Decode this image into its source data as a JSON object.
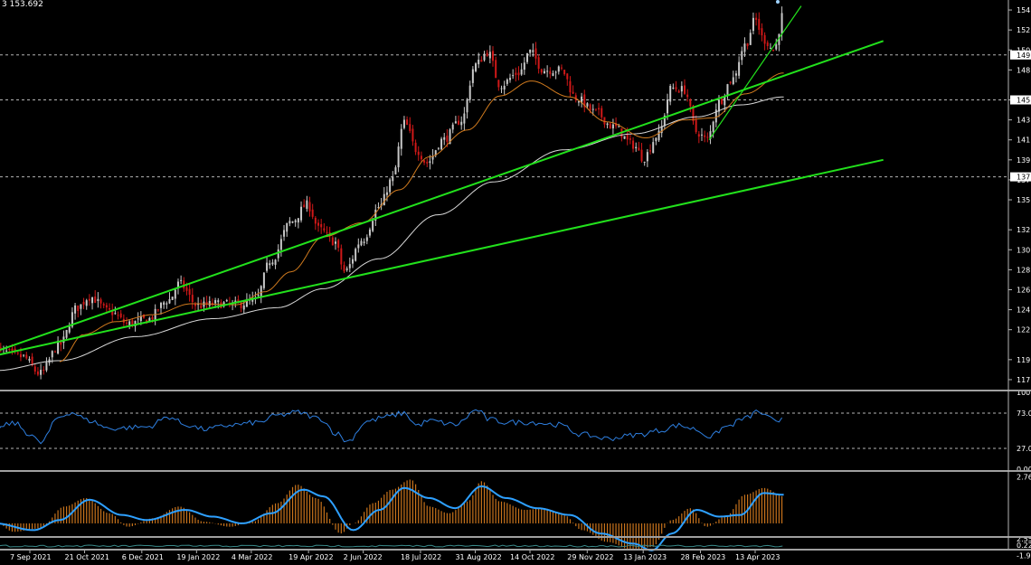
{
  "header": {
    "label": "3 153.692"
  },
  "chart_data": [
    {
      "type": "candlestick",
      "panel": "price",
      "ylim": [
        116,
        155
      ],
      "y_ticks": [
        "117.",
        "119.",
        "122.",
        "124.",
        "126.",
        "128.",
        "130.",
        "132.",
        "135.",
        "137.",
        "139.",
        "141.",
        "143.",
        "145.",
        "148.",
        "150.",
        "152.",
        "154."
      ],
      "y_tick_values": [
        117,
        119,
        122,
        124,
        126,
        128,
        130,
        132,
        135,
        137,
        139,
        141,
        143,
        145,
        148,
        150,
        152,
        154
      ],
      "hlines": [
        {
          "value": 149.5,
          "label": "149."
        },
        {
          "value": 145.0,
          "label": "145."
        },
        {
          "value": 137.3,
          "label": "137."
        }
      ],
      "price_anchors": [
        [
          "2021-08-10",
          120.0
        ],
        [
          "2021-09-01",
          119.3
        ],
        [
          "2021-09-15",
          117.6
        ],
        [
          "2021-10-01",
          120.5
        ],
        [
          "2021-10-15",
          124.2
        ],
        [
          "2021-10-25",
          125.3
        ],
        [
          "2021-11-10",
          123.8
        ],
        [
          "2021-11-25",
          122.6
        ],
        [
          "2021-12-10",
          123.0
        ],
        [
          "2021-12-28",
          125.0
        ],
        [
          "2022-01-05",
          126.6
        ],
        [
          "2022-01-20",
          124.4
        ],
        [
          "2022-02-05",
          124.6
        ],
        [
          "2022-02-20",
          124.5
        ],
        [
          "2022-03-07",
          124.9
        ],
        [
          "2022-03-20",
          129.0
        ],
        [
          "2022-04-05",
          132.8
        ],
        [
          "2022-04-18",
          134.5
        ],
        [
          "2022-04-28",
          132.0
        ],
        [
          "2022-05-10",
          130.8
        ],
        [
          "2022-05-18",
          127.8
        ],
        [
          "2022-06-01",
          131.0
        ],
        [
          "2022-06-15",
          134.3
        ],
        [
          "2022-06-25",
          137.0
        ],
        [
          "2022-07-05",
          142.7
        ],
        [
          "2022-07-15",
          140.0
        ],
        [
          "2022-07-23",
          138.7
        ],
        [
          "2022-08-05",
          141.0
        ],
        [
          "2022-08-20",
          143.0
        ],
        [
          "2022-08-31",
          148.5
        ],
        [
          "2022-09-10",
          149.8
        ],
        [
          "2022-09-20",
          146.5
        ],
        [
          "2022-10-05",
          147.7
        ],
        [
          "2022-10-14",
          149.8
        ],
        [
          "2022-10-25",
          148.0
        ],
        [
          "2022-11-08",
          148.0
        ],
        [
          "2022-11-20",
          145.2
        ],
        [
          "2022-12-05",
          143.8
        ],
        [
          "2022-12-20",
          142.3
        ],
        [
          "2023-01-05",
          140.5
        ],
        [
          "2023-01-13",
          139.2
        ],
        [
          "2023-01-25",
          141.5
        ],
        [
          "2023-02-05",
          146.2
        ],
        [
          "2023-02-15",
          146.0
        ],
        [
          "2023-02-25",
          141.8
        ],
        [
          "2023-03-05",
          141.0
        ],
        [
          "2023-03-15",
          144.8
        ],
        [
          "2023-03-25",
          147.0
        ],
        [
          "2023-04-05",
          150.5
        ],
        [
          "2023-04-13",
          153.0
        ],
        [
          "2023-04-20",
          151.0
        ],
        [
          "2023-04-28",
          150.0
        ],
        [
          "2023-05-06",
          153.7
        ]
      ],
      "ma_fast_anchors": [
        [
          "2021-10-01",
          118.8
        ],
        [
          "2021-10-20",
          121.5
        ],
        [
          "2021-11-15",
          122.8
        ],
        [
          "2021-12-15",
          123.5
        ],
        [
          "2022-01-15",
          124.6
        ],
        [
          "2022-02-20",
          124.5
        ],
        [
          "2022-03-15",
          125.8
        ],
        [
          "2022-04-05",
          127.8
        ],
        [
          "2022-05-01",
          131.3
        ],
        [
          "2022-06-01",
          132.7
        ],
        [
          "2022-07-01",
          136.0
        ],
        [
          "2022-07-25",
          139.3
        ],
        [
          "2022-08-25",
          142.0
        ],
        [
          "2022-09-20",
          145.4
        ],
        [
          "2022-10-15",
          146.9
        ],
        [
          "2022-11-15",
          145.3
        ],
        [
          "2022-12-15",
          142.8
        ],
        [
          "2023-01-15",
          141.2
        ],
        [
          "2023-02-15",
          143.0
        ],
        [
          "2023-03-10",
          143.2
        ],
        [
          "2023-04-05",
          145.6
        ],
        [
          "2023-05-06",
          147.7
        ]
      ],
      "ma_slow_anchors": [
        [
          "2021-08-10",
          117.9
        ],
        [
          "2021-10-01",
          118.9
        ],
        [
          "2021-12-01",
          121.3
        ],
        [
          "2022-02-01",
          123.1
        ],
        [
          "2022-03-25",
          124.2
        ],
        [
          "2022-05-01",
          126.1
        ],
        [
          "2022-06-15",
          129.1
        ],
        [
          "2022-08-01",
          133.5
        ],
        [
          "2022-09-15",
          136.8
        ],
        [
          "2022-11-10",
          140.0
        ],
        [
          "2023-01-05",
          141.6
        ],
        [
          "2023-02-25",
          143.3
        ],
        [
          "2023-04-01",
          144.5
        ],
        [
          "2023-05-06",
          145.3
        ]
      ],
      "trendlines": [
        {
          "from": [
            "2021-08-10",
            119.8
          ],
          "to": [
            "2023-07-25",
            150.9
          ]
        },
        {
          "from": [
            "2021-08-10",
            119.4
          ],
          "to": [
            "2023-07-25",
            139.0
          ]
        },
        {
          "from": [
            "2023-03-07",
            141.0
          ],
          "to": [
            "2023-05-20",
            154.4
          ]
        }
      ]
    },
    {
      "type": "line",
      "panel": "oscillator",
      "ylim": [
        0,
        100
      ],
      "y_ticks": [
        "100",
        "73.0",
        "27.0",
        "0.00"
      ],
      "y_tick_values": [
        100,
        73,
        27,
        0
      ],
      "hlines": [
        73,
        27
      ],
      "anchors": [
        [
          "2021-08-10",
          52
        ],
        [
          "2021-08-25",
          60
        ],
        [
          "2021-09-08",
          45
        ],
        [
          "2021-09-15",
          34
        ],
        [
          "2021-10-01",
          68
        ],
        [
          "2021-10-10",
          74
        ],
        [
          "2021-10-25",
          63
        ],
        [
          "2021-11-10",
          53
        ],
        [
          "2021-12-10",
          55
        ],
        [
          "2021-12-28",
          68
        ],
        [
          "2022-01-10",
          58
        ],
        [
          "2022-01-25",
          52
        ],
        [
          "2022-02-20",
          58
        ],
        [
          "2022-03-10",
          61
        ],
        [
          "2022-03-25",
          70
        ],
        [
          "2022-04-10",
          74
        ],
        [
          "2022-04-28",
          66
        ],
        [
          "2022-05-12",
          46
        ],
        [
          "2022-05-20",
          36
        ],
        [
          "2022-06-05",
          62
        ],
        [
          "2022-06-20",
          68
        ],
        [
          "2022-07-05",
          73
        ],
        [
          "2022-07-15",
          57
        ],
        [
          "2022-07-25",
          63
        ],
        [
          "2022-08-15",
          58
        ],
        [
          "2022-09-02",
          77
        ],
        [
          "2022-09-10",
          65
        ],
        [
          "2022-09-25",
          61
        ],
        [
          "2022-10-15",
          61
        ],
        [
          "2022-11-05",
          58
        ],
        [
          "2022-11-25",
          45
        ],
        [
          "2022-12-15",
          40
        ],
        [
          "2023-01-10",
          45
        ],
        [
          "2023-01-25",
          50
        ],
        [
          "2023-02-10",
          57
        ],
        [
          "2023-02-25",
          52
        ],
        [
          "2023-03-01",
          47
        ],
        [
          "2023-03-08",
          42
        ],
        [
          "2023-03-20",
          55
        ],
        [
          "2023-04-05",
          66
        ],
        [
          "2023-04-15",
          75
        ],
        [
          "2023-04-25",
          66
        ],
        [
          "2023-04-30",
          60
        ],
        [
          "2023-05-06",
          69
        ]
      ]
    },
    {
      "type": "histogram",
      "panel": "macd",
      "ylim": [
        -2.2,
        3.0
      ],
      "y_ticks": [
        "2.76",
        "-1.9"
      ],
      "y_tick_values": [
        2.76,
        -1.9
      ],
      "hist_anchors": [
        [
          "2021-08-10",
          0.1
        ],
        [
          "2021-08-25",
          -0.5
        ],
        [
          "2021-09-15",
          -0.3
        ],
        [
          "2021-10-05",
          1.0
        ],
        [
          "2021-10-22",
          1.5
        ],
        [
          "2021-11-10",
          0.6
        ],
        [
          "2021-11-25",
          -0.2
        ],
        [
          "2021-12-15",
          0.3
        ],
        [
          "2022-01-05",
          1.0
        ],
        [
          "2022-01-25",
          0.1
        ],
        [
          "2022-02-15",
          -0.2
        ],
        [
          "2022-03-05",
          0.1
        ],
        [
          "2022-03-25",
          1.2
        ],
        [
          "2022-04-10",
          2.3
        ],
        [
          "2022-04-25",
          1.5
        ],
        [
          "2022-05-15",
          -0.6
        ],
        [
          "2022-05-25",
          0.0
        ],
        [
          "2022-06-10",
          1.2
        ],
        [
          "2022-06-25",
          2.0
        ],
        [
          "2022-07-10",
          2.6
        ],
        [
          "2022-07-25",
          1.0
        ],
        [
          "2022-08-10",
          0.6
        ],
        [
          "2022-08-25",
          1.3
        ],
        [
          "2022-09-05",
          2.5
        ],
        [
          "2022-09-20",
          1.3
        ],
        [
          "2022-10-10",
          0.8
        ],
        [
          "2022-10-25",
          0.9
        ],
        [
          "2022-11-10",
          0.5
        ],
        [
          "2022-11-25",
          -0.4
        ],
        [
          "2022-12-15",
          -1.1
        ],
        [
          "2023-01-05",
          -1.6
        ],
        [
          "2023-01-20",
          -1.4
        ],
        [
          "2023-02-05",
          0.2
        ],
        [
          "2023-02-20",
          0.9
        ],
        [
          "2023-03-05",
          -0.2
        ],
        [
          "2023-03-20",
          0.4
        ],
        [
          "2023-04-05",
          1.7
        ],
        [
          "2023-04-20",
          2.1
        ],
        [
          "2023-05-06",
          1.6
        ]
      ],
      "signal_anchors": [
        [
          "2021-08-10",
          0.0
        ],
        [
          "2021-09-10",
          -0.4
        ],
        [
          "2021-10-01",
          0.2
        ],
        [
          "2021-10-25",
          1.4
        ],
        [
          "2021-11-20",
          0.5
        ],
        [
          "2021-12-10",
          0.2
        ],
        [
          "2022-01-10",
          0.8
        ],
        [
          "2022-02-01",
          0.4
        ],
        [
          "2022-02-25",
          0.0
        ],
        [
          "2022-03-20",
          0.6
        ],
        [
          "2022-04-15",
          2.0
        ],
        [
          "2022-05-01",
          1.6
        ],
        [
          "2022-05-25",
          -0.4
        ],
        [
          "2022-06-15",
          0.8
        ],
        [
          "2022-07-05",
          2.1
        ],
        [
          "2022-07-25",
          1.5
        ],
        [
          "2022-08-15",
          0.9
        ],
        [
          "2022-09-05",
          2.2
        ],
        [
          "2022-09-25",
          1.5
        ],
        [
          "2022-10-20",
          0.9
        ],
        [
          "2022-11-15",
          0.5
        ],
        [
          "2022-12-10",
          -0.6
        ],
        [
          "2023-01-05",
          -1.2
        ],
        [
          "2023-01-20",
          -1.6
        ],
        [
          "2023-02-05",
          -0.6
        ],
        [
          "2023-02-25",
          0.8
        ],
        [
          "2023-03-15",
          0.4
        ],
        [
          "2023-04-01",
          0.5
        ],
        [
          "2023-04-20",
          1.8
        ],
        [
          "2023-05-06",
          1.7
        ]
      ]
    },
    {
      "type": "line",
      "panel": "volume",
      "y_ticks": [
        "2.55",
        "0.22"
      ],
      "y_tick_values": [
        2.55,
        0.22
      ]
    }
  ],
  "x_ticks": [
    {
      "label": "7 Sep 2021",
      "date": "2021-09-07"
    },
    {
      "label": "21 Oct 2021",
      "date": "2021-10-21"
    },
    {
      "label": "6 Dec 2021",
      "date": "2021-12-06"
    },
    {
      "label": "19 Jan 2022",
      "date": "2022-01-19"
    },
    {
      "label": "4 Mar 2022",
      "date": "2022-03-04"
    },
    {
      "label": "19 Apr 2022",
      "date": "2022-04-19"
    },
    {
      "label": "2 Jun 2022",
      "date": "2022-06-02"
    },
    {
      "label": "18 Jul 2022",
      "date": "2022-07-18"
    },
    {
      "label": "31 Aug 2022",
      "date": "2022-08-31"
    },
    {
      "label": "14 Oct 2022",
      "date": "2022-10-14"
    },
    {
      "label": "29 Nov 2022",
      "date": "2022-11-29"
    },
    {
      "label": "13 Jan 2023",
      "date": "2023-01-13"
    },
    {
      "label": "28 Feb 2023",
      "date": "2023-02-28"
    },
    {
      "label": "13 Apr 2023",
      "date": "2023-04-13"
    }
  ],
  "colors": {
    "background": "#000000",
    "candle_up": "#c8c8c8",
    "candle_down": "#d01818",
    "ma_fast": "#d07a1e",
    "ma_slow": "#d8d8d8",
    "trendline": "#22e11c",
    "oscillator": "#2e7fe0",
    "macd_hist": "#c8731c",
    "macd_signal": "#2ea0ff",
    "volume": "#3a8a8a",
    "grid": "#b4b4b4",
    "separator": "#a0a0a0"
  }
}
